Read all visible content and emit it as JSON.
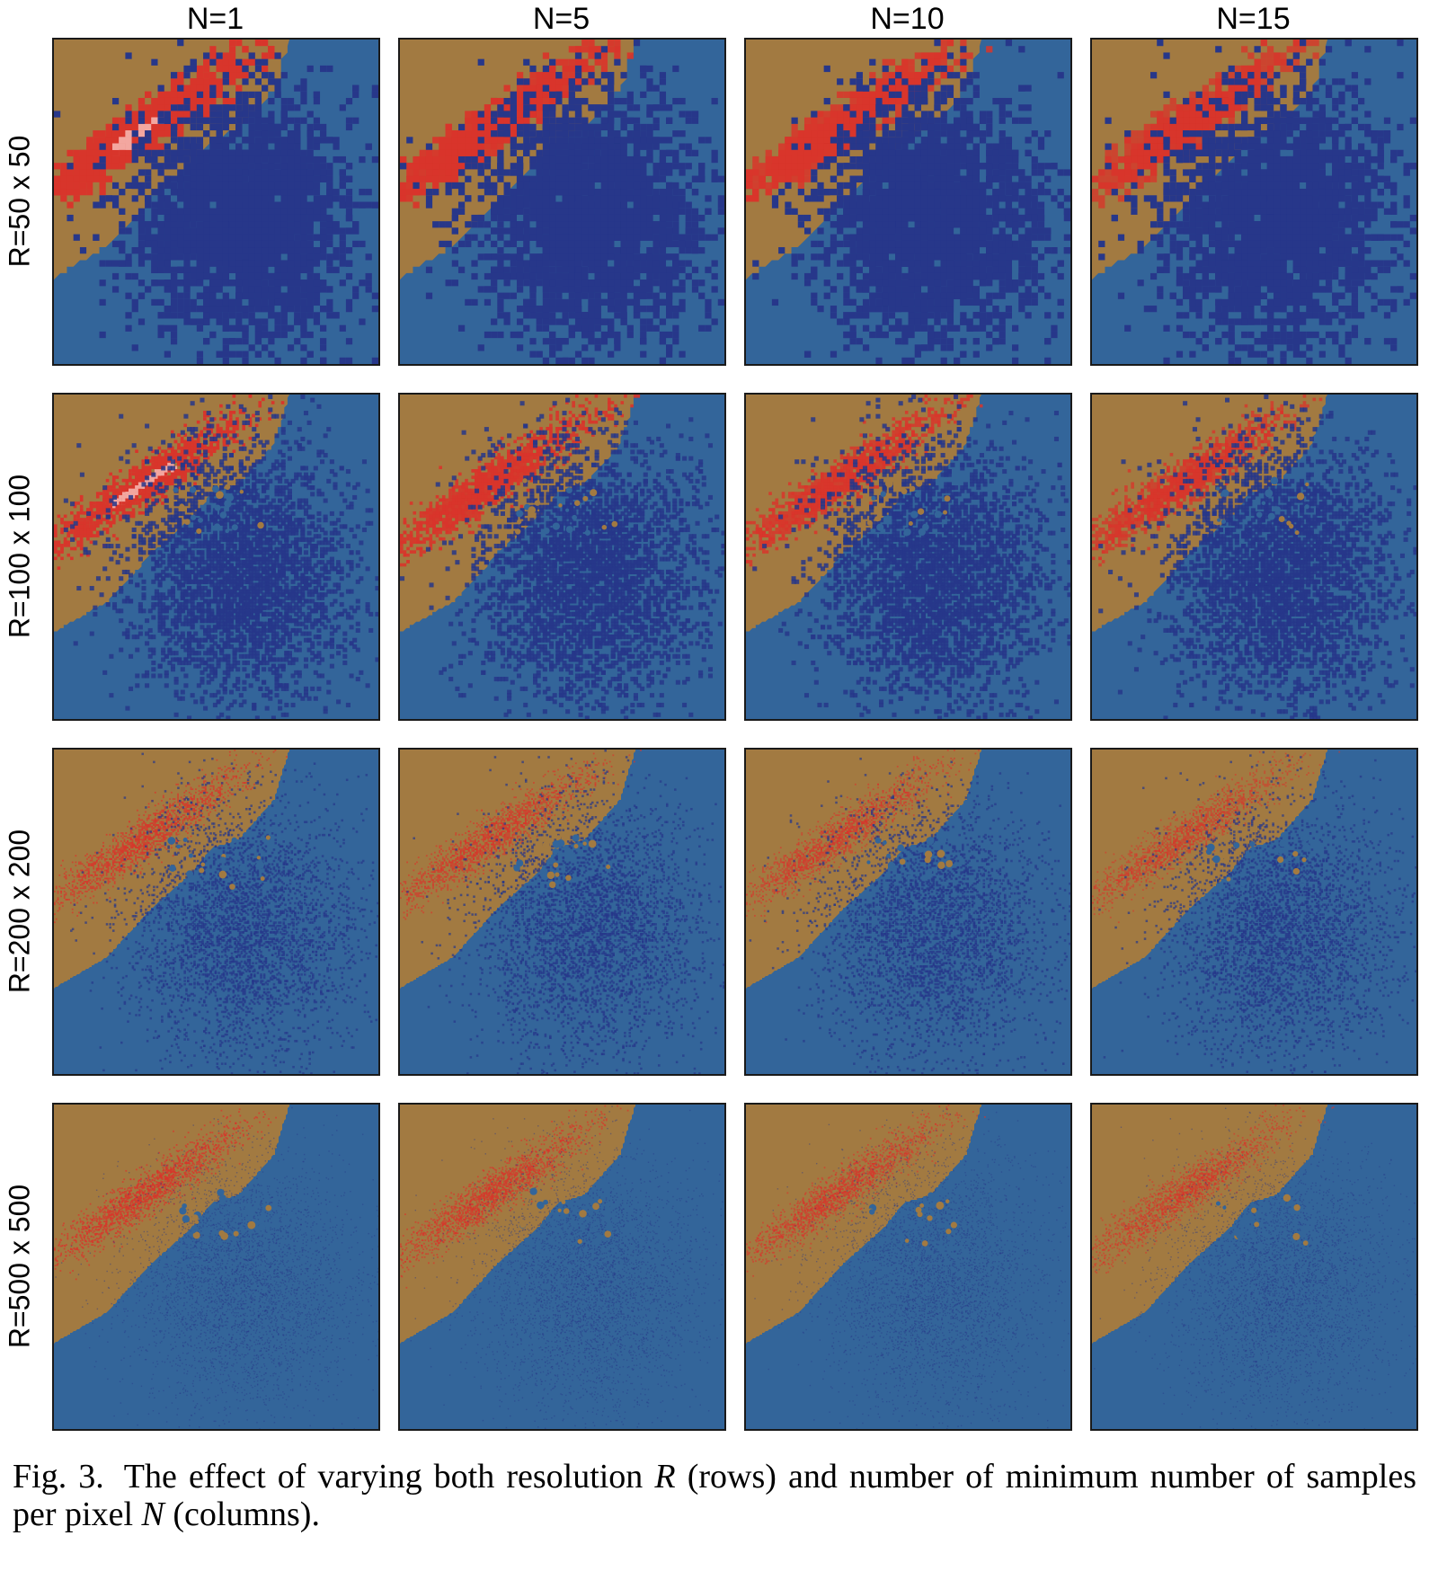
{
  "figure": {
    "columns": [
      {
        "label": "N=1",
        "n": 1
      },
      {
        "label": "N=5",
        "n": 5
      },
      {
        "label": "N=10",
        "n": 10
      },
      {
        "label": "N=15",
        "n": 15
      }
    ],
    "rows": [
      {
        "label": "R=50 x 50",
        "resolution": 50
      },
      {
        "label": "R=100 x 100",
        "resolution": 100
      },
      {
        "label": "R=200 x 200",
        "resolution": 200
      },
      {
        "label": "R=500 x 500",
        "resolution": 500
      }
    ],
    "colors": {
      "background_region": "#33659a",
      "boundary_region": "#a27a41",
      "red_cluster": "#d8352b",
      "red_highlight": "#f3a7a0",
      "blue_cluster": "#27378a"
    },
    "caption": {
      "prefix": "Fig. 3.",
      "part1": "The effect of varying both resolution ",
      "var_r": "R",
      "part2": " (rows) and number of minimum number of samples per pixel ",
      "var_n": "N",
      "part3": " (columns)."
    }
  }
}
